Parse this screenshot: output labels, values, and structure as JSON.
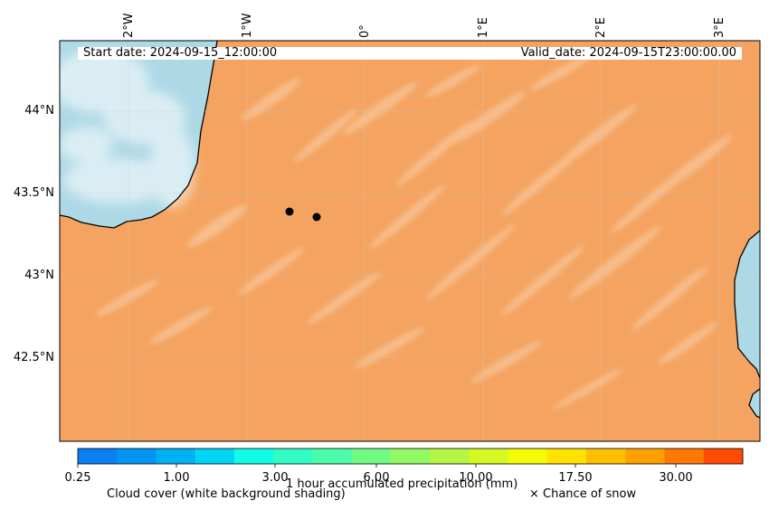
{
  "header": {
    "start_date": "Start date: 2024-09-15_12:00:00",
    "valid_date": "Valid_date: 2024-09-15T23:00:00.00"
  },
  "longitude_labels": [
    "2°W",
    "1°W",
    "0°",
    "1°E",
    "2°E",
    "3°E"
  ],
  "latitude_labels": [
    "44°N",
    "43.5°N",
    "43°N",
    "42.5°N"
  ],
  "colorbar": {
    "title": "1 hour accumulated precipitation (mm)",
    "tick_labels": [
      "0.25",
      "1.00",
      "3.00",
      "6.00",
      "10.00",
      "17.50",
      "30.00"
    ],
    "colors": [
      "#0a7ff2",
      "#0095f2",
      "#00b0f5",
      "#00d4f5",
      "#10fce6",
      "#31fcc6",
      "#4cfca8",
      "#70fc82",
      "#92f962",
      "#b5f642",
      "#d6f822",
      "#f4fb03",
      "#ffe200",
      "#ffbf00",
      "#ff9f00",
      "#ff7800",
      "#ff4c00"
    ]
  },
  "legend": {
    "cloud_cover": "Cloud cover (white background shading)",
    "snow": "× Chance of snow"
  },
  "map_colors": {
    "land": "#f4a460",
    "sea": "#add8e6",
    "cloud": "#ffffff"
  },
  "markers": [
    "point-1",
    "point-2"
  ]
}
